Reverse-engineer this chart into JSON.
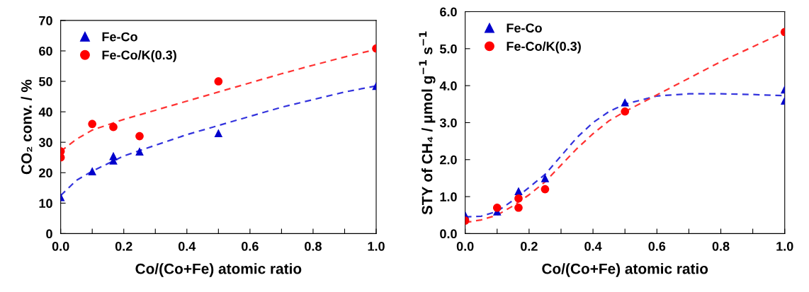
{
  "chart_data": [
    {
      "type": "scatter",
      "xlabel": "Co/(Co+Fe) atomic ratio",
      "ylabel": "CO₂ conv. / %",
      "xlim": [
        0,
        1
      ],
      "ylim": [
        0,
        70
      ],
      "xticks": [
        {
          "value": 0,
          "label": "0.0"
        },
        {
          "value": 0.1,
          "label": null
        },
        {
          "value": 0.2,
          "label": "0.2"
        },
        {
          "value": 0.3,
          "label": null
        },
        {
          "value": 0.4,
          "label": "0.4"
        },
        {
          "value": 0.5,
          "label": null
        },
        {
          "value": 0.6,
          "label": "0.6"
        },
        {
          "value": 0.7,
          "label": null
        },
        {
          "value": 0.8,
          "label": "0.8"
        },
        {
          "value": 0.9,
          "label": null
        },
        {
          "value": 1,
          "label": "1.0"
        }
      ],
      "yticks": [
        0,
        10,
        20,
        30,
        40,
        50,
        60,
        70
      ],
      "grid": false,
      "legend": "top left",
      "series": [
        {
          "name": "Fe-Co",
          "marker": "triangle",
          "color": "#0000cc",
          "x": [
            0,
            0.1,
            0.167,
            0.167,
            0.25,
            0.5,
            1
          ],
          "values": [
            12,
            20.5,
            24,
            25.5,
            27,
            33,
            48.5
          ]
        },
        {
          "name": "Fe-Co/K(0.3)",
          "marker": "circle",
          "color": "#ff0000",
          "x": [
            0,
            0,
            0.1,
            0.167,
            0.25,
            0.5,
            1
          ],
          "values": [
            27,
            25,
            36,
            35,
            32,
            50,
            60.8
          ]
        },
        {
          "type": "line",
          "line_style": "dashed",
          "color": "#3333dd",
          "x": [
            0,
            0.05,
            0.1,
            0.2,
            0.3,
            0.4,
            0.5,
            0.6,
            0.7,
            0.8,
            0.9,
            1
          ],
          "values": [
            12.5,
            17.5,
            20.5,
            25.5,
            29,
            32.5,
            35.5,
            38.5,
            41.5,
            44,
            46.5,
            48.5
          ]
        },
        {
          "type": "line",
          "line_style": "dashed",
          "color": "#ff3333",
          "x": [
            0,
            0.05,
            0.1,
            0.2,
            0.3,
            0.4,
            0.5,
            0.6,
            0.7,
            0.8,
            0.9,
            1
          ],
          "values": [
            27,
            31,
            34,
            37.5,
            40.5,
            43.5,
            46.5,
            49.5,
            52.5,
            55.3,
            58,
            60.5
          ]
        }
      ]
    },
    {
      "type": "scatter",
      "xlabel": "Co/(Co+Fe) atomic ratio",
      "ylabel": "STY of CH₄ / μmol g$^{−1}$ s$^{−1}$",
      "xlim": [
        0,
        1
      ],
      "ylim": [
        0,
        6
      ],
      "xticks": [
        {
          "value": 0,
          "label": "0.0"
        },
        {
          "value": 0.1,
          "label": null
        },
        {
          "value": 0.2,
          "label": "0.2"
        },
        {
          "value": 0.3,
          "label": null
        },
        {
          "value": 0.4,
          "label": "0.4"
        },
        {
          "value": 0.5,
          "label": null
        },
        {
          "value": 0.6,
          "label": "0.6"
        },
        {
          "value": 0.7,
          "label": null
        },
        {
          "value": 0.8,
          "label": "0.8"
        },
        {
          "value": 0.9,
          "label": null
        },
        {
          "value": 1,
          "label": "1.0"
        }
      ],
      "yticks": [
        {
          "value": 0,
          "label": "0.0"
        },
        {
          "value": 1,
          "label": "1.0"
        },
        {
          "value": 2,
          "label": "2.0"
        },
        {
          "value": 3,
          "label": "3.0"
        },
        {
          "value": 4,
          "label": "4.0"
        },
        {
          "value": 5,
          "label": "5.0"
        },
        {
          "value": 6,
          "label": "6.0"
        }
      ],
      "grid": false,
      "legend": "top left",
      "series": [
        {
          "name": "Fe-Co",
          "marker": "triangle",
          "color": "#0000cc",
          "x": [
            0,
            0.1,
            0.167,
            0.25,
            0.5,
            1,
            1
          ],
          "values": [
            0.5,
            0.6,
            1.15,
            1.5,
            3.55,
            3.9,
            3.6
          ]
        },
        {
          "name": "Fe-Co/K(0.3)",
          "marker": "circle",
          "color": "#ff0000",
          "x": [
            0,
            0.1,
            0.167,
            0.167,
            0.25,
            0.5,
            1
          ],
          "values": [
            0.35,
            0.7,
            0.95,
            0.7,
            1.2,
            3.3,
            5.45
          ]
        },
        {
          "type": "line",
          "line_style": "dashed",
          "color": "#3333dd",
          "x": [
            0,
            0.05,
            0.1,
            0.15,
            0.2,
            0.25,
            0.3,
            0.35,
            0.4,
            0.45,
            0.5,
            0.6,
            0.7,
            0.8,
            0.9,
            1
          ],
          "values": [
            0.45,
            0.47,
            0.6,
            0.9,
            1.25,
            1.6,
            2.1,
            2.6,
            3.0,
            3.3,
            3.5,
            3.72,
            3.78,
            3.78,
            3.76,
            3.73
          ]
        },
        {
          "type": "line",
          "line_style": "dashed",
          "color": "#ff3333",
          "x": [
            0,
            0.05,
            0.1,
            0.15,
            0.2,
            0.25,
            0.3,
            0.35,
            0.4,
            0.45,
            0.5,
            0.6,
            0.7,
            0.8,
            0.9,
            1
          ],
          "values": [
            0.3,
            0.37,
            0.5,
            0.75,
            1.05,
            1.4,
            1.85,
            2.3,
            2.7,
            3.05,
            3.3,
            3.75,
            4.2,
            4.65,
            5.05,
            5.45
          ]
        }
      ]
    }
  ]
}
